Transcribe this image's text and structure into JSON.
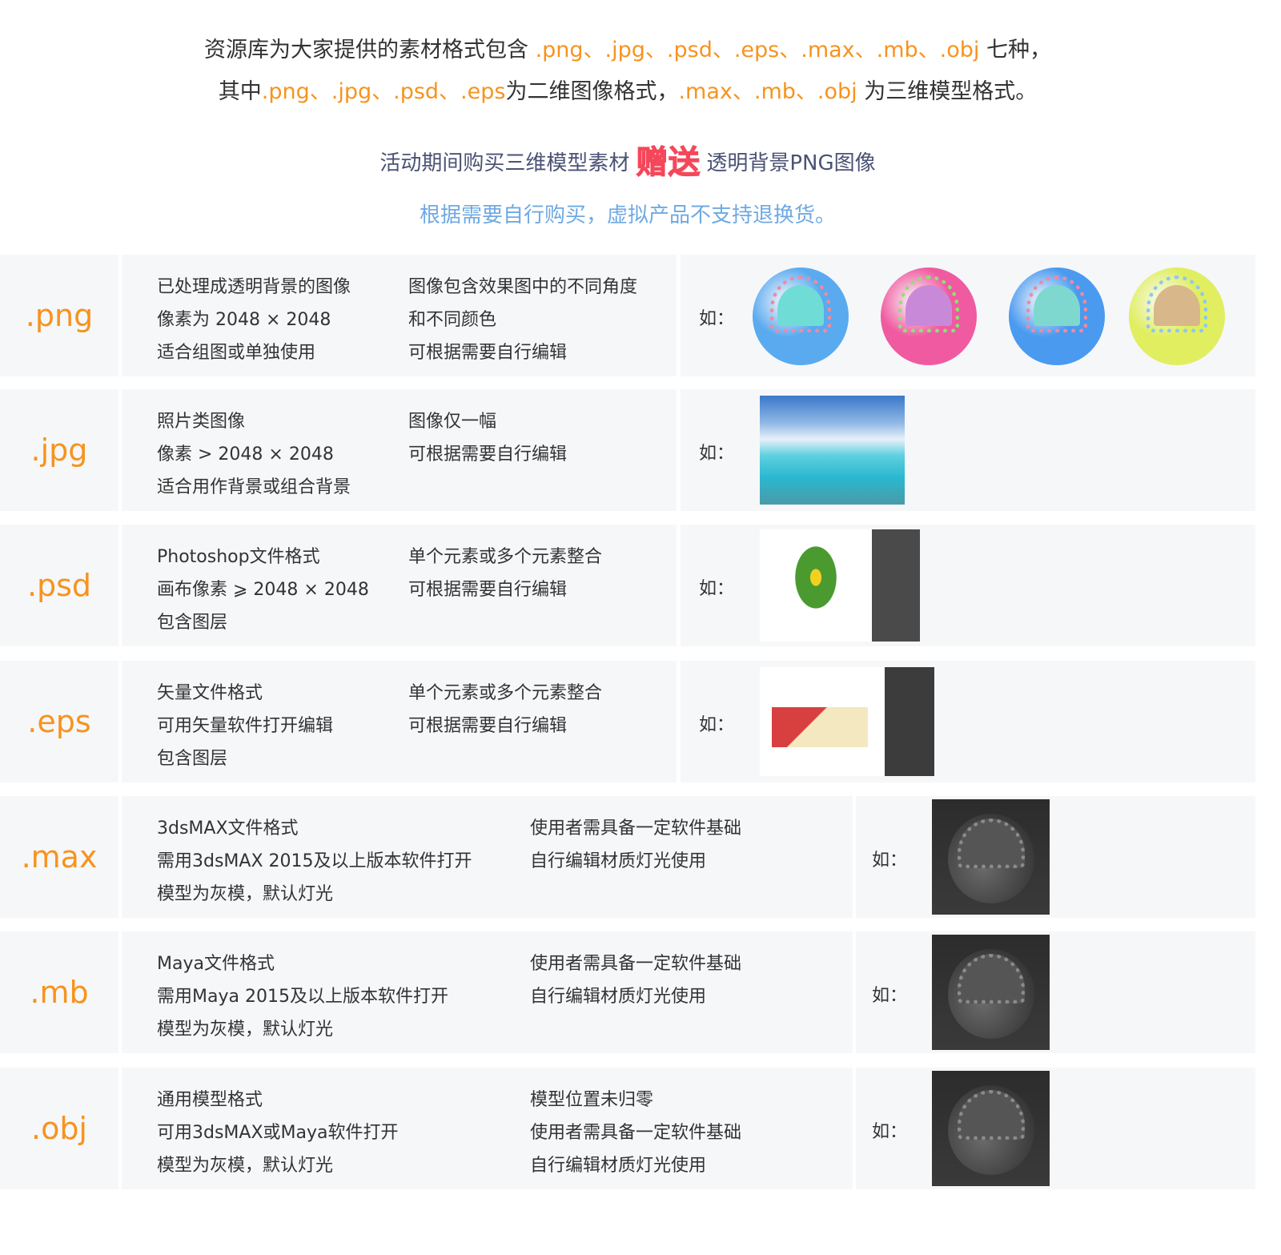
{
  "header": {
    "line1": [
      {
        "text": "资源库为大家提供的素材格式包含 "
      },
      {
        "text": ".png、.jpg、.psd、.eps、.max、.mb、.obj"
      },
      {
        "text": " 七种，"
      }
    ],
    "line2": [
      {
        "text": "其中"
      },
      {
        "text": ".png、.jpg、.psd、.eps"
      },
      {
        "text": "为二维图像格式，"
      },
      {
        "text": ".max、.mb、.obj"
      },
      {
        "text": " 为三维模型格式。"
      }
    ],
    "promo_before": "活动期间购买三维模型素材",
    "promo_gift": "赠送",
    "promo_after": "透明背景PNG图像",
    "note": "根据需要自行购买，虚拟产品不支持退换货。"
  },
  "colors": {
    "accent": "#f7931e",
    "gift": "#f5475a",
    "note": "#6fa9e2",
    "row_bg": "#f6f7f9"
  },
  "example_label": "如：",
  "rows": [
    {
      "format": ".png",
      "col1": [
        "已处理成透明背景的图像",
        "像素为 2048 × 2048",
        "适合组图或单独使用"
      ],
      "col2": [
        "图像包含效果图中的不同角度",
        "和不同颜色",
        "可根据需要自行编辑"
      ],
      "example": "colored-cell-spheres"
    },
    {
      "format": ".jpg",
      "col1": [
        "照片类图像",
        "像素 > 2048 × 2048",
        "适合用作背景或组合背景"
      ],
      "col2": [
        "图像仅一幅",
        "可根据需要自行编辑"
      ],
      "example": "sea-sky-photo"
    },
    {
      "format": ".psd",
      "col1": [
        "Photoshop文件格式",
        "画布像素 ⩾ 2048 × 2048",
        "包含图层"
      ],
      "col2": [
        "单个元素或多个元素整合",
        "可根据需要自行编辑"
      ],
      "example": "plant-with-layers-panel"
    },
    {
      "format": ".eps",
      "col1": [
        "矢量文件格式",
        "可用矢量软件打开编辑",
        "包含图层"
      ],
      "col2": [
        "单个元素或多个元素整合",
        "可根据需要自行编辑"
      ],
      "example": "houses-with-layers-panel"
    },
    {
      "format": ".max",
      "col1": [
        "3dsMAX文件格式",
        "需用3dsMAX 2015及以上版本软件打开",
        "模型为灰模，默认灯光"
      ],
      "col2": [
        "使用者需具备一定软件基础",
        "自行编辑材质灯光使用"
      ],
      "example": "gray-model"
    },
    {
      "format": ".mb",
      "col1": [
        "Maya文件格式",
        "需用Maya 2015及以上版本软件打开",
        "模型为灰模，默认灯光"
      ],
      "col2": [
        "使用者需具备一定软件基础",
        "自行编辑材质灯光使用"
      ],
      "example": "gray-model"
    },
    {
      "format": ".obj",
      "col1": [
        "通用模型格式",
        "可用3dsMAX或Maya软件打开",
        "模型为灰模，默认灯光"
      ],
      "col2": [
        "模型位置未归零",
        "使用者需具备一定软件基础",
        "自行编辑材质灯光使用"
      ],
      "example": "gray-model"
    }
  ]
}
